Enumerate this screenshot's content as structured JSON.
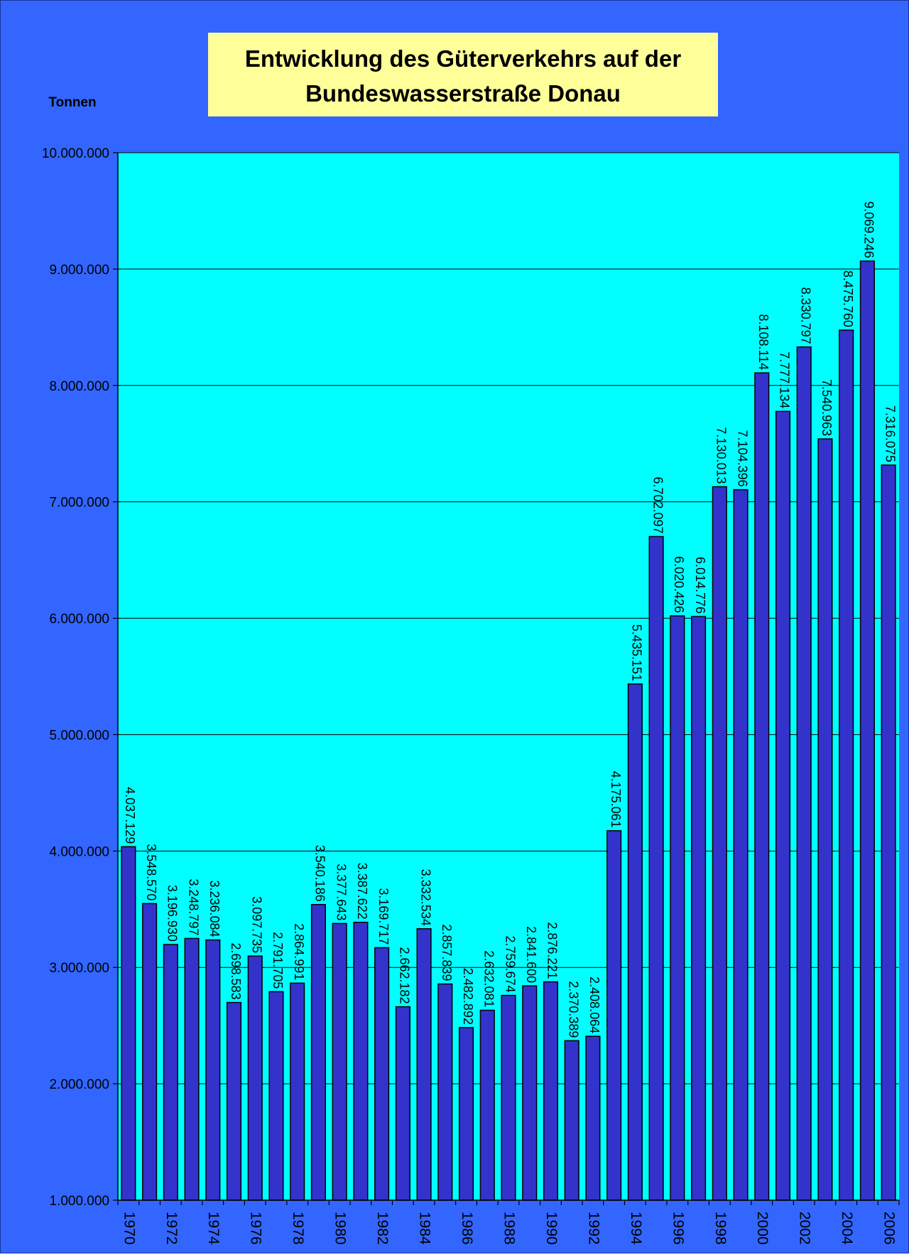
{
  "chart_data": {
    "type": "bar",
    "title_line1": "Entwicklung des Güterverkehrs auf der",
    "title_line2": "Bundeswasserstraße Donau",
    "ylabel": "Tonnen",
    "xlabel": "",
    "ylim": [
      1000000,
      10000000
    ],
    "y_ticks": [
      1000000,
      2000000,
      3000000,
      4000000,
      5000000,
      6000000,
      7000000,
      8000000,
      9000000,
      10000000
    ],
    "y_tick_labels": [
      "1.000.000",
      "2.000.000",
      "3.000.000",
      "4.000.000",
      "5.000.000",
      "6.000.000",
      "7.000.000",
      "8.000.000",
      "9.000.000",
      "10.000.000"
    ],
    "grid": true,
    "categories": [
      "1970",
      "1971",
      "1972",
      "1973",
      "1974",
      "1975",
      "1976",
      "1977",
      "1978",
      "1979",
      "1980",
      "1981",
      "1982",
      "1983",
      "1984",
      "1985",
      "1986",
      "1987",
      "1988",
      "1989",
      "1990",
      "1991",
      "1992",
      "1993",
      "1994",
      "1995",
      "1996",
      "1997",
      "1998",
      "1999",
      "2000",
      "2001",
      "2002",
      "2003",
      "2004",
      "2005",
      "2006"
    ],
    "x_tick_labels": [
      "1970",
      "",
      "1972",
      "",
      "1974",
      "",
      "1976",
      "",
      "1978",
      "",
      "1980",
      "",
      "1982",
      "",
      "1984",
      "",
      "1986",
      "",
      "1988",
      "",
      "1990",
      "",
      "1992",
      "",
      "1994",
      "",
      "1996",
      "",
      "1998",
      "",
      "2000",
      "",
      "2002",
      "",
      "2004",
      "",
      "2006"
    ],
    "values": [
      4037129,
      3548570,
      3196930,
      3248797,
      3236084,
      2698583,
      3097735,
      2791705,
      2864991,
      3540186,
      3377643,
      3387622,
      3169717,
      2662182,
      3332534,
      2857839,
      2482892,
      2632081,
      2759674,
      2841600,
      2876221,
      2370389,
      2408064,
      4175061,
      5435151,
      6702097,
      6020426,
      6014776,
      7130013,
      7104396,
      8108114,
      7777134,
      8330797,
      7540963,
      8475760,
      9069246,
      7316075
    ],
    "data_labels": [
      "4.037.129",
      "3.548.570",
      "3.196.930",
      "3.248.797",
      "3.236.084",
      "2.698.583",
      "3.097.735",
      "2.791.705",
      "2.864.991",
      "3.540.186",
      "3.377.643",
      "3.387.622",
      "3.169.717",
      "2.662.182",
      "3.332.534",
      "2.857.839",
      "2.482.892",
      "2.632.081",
      "2.759.674",
      "2.841.600",
      "2.876.221",
      "2.370.389",
      "2.408.064",
      "4.175.061",
      "5.435.151",
      "6.702.097",
      "6.020.426",
      "6.014.776",
      "7.130.013",
      "7.104.396",
      "8.108.114",
      "7.777.134",
      "8.330.797",
      "7.540.963",
      "8.475.760",
      "9.069.246",
      "7.316.075"
    ],
    "colors": {
      "background": "#3366ff",
      "plot_area": "#00ffff",
      "bar_fill": "#3333cc",
      "bar_stroke": "#000000",
      "title_box": "#ffff99",
      "gridline": "#000000"
    }
  }
}
